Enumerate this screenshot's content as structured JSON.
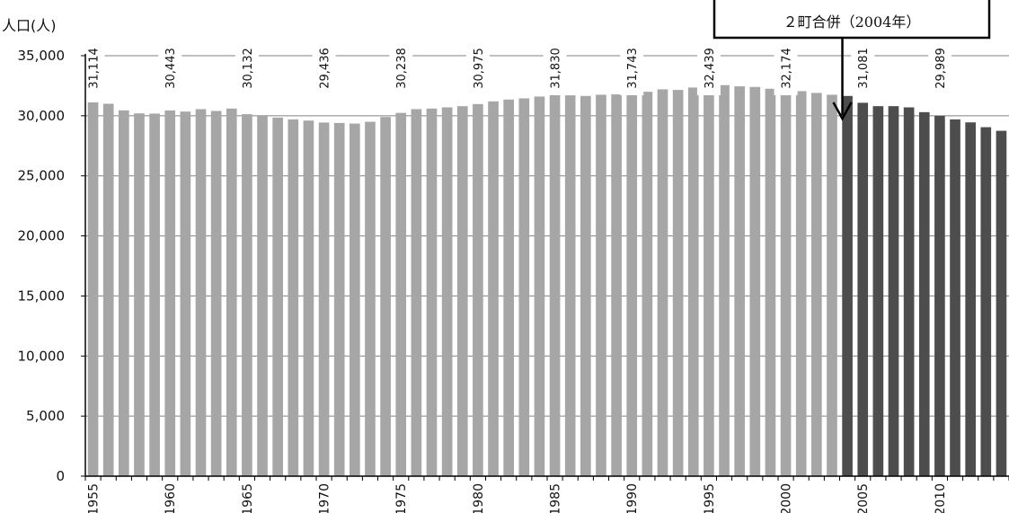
{
  "chart_data": {
    "type": "bar",
    "ylabel": "人口(人)",
    "ylim": [
      0,
      35000
    ],
    "yticks": [
      "0",
      "5,000",
      "10,000",
      "15,000",
      "20,000",
      "25,000",
      "30,000",
      "35,000"
    ],
    "x": [
      1955,
      1956,
      1957,
      1958,
      1959,
      1960,
      1961,
      1962,
      1963,
      1964,
      1965,
      1966,
      1967,
      1968,
      1969,
      1970,
      1971,
      1972,
      1973,
      1974,
      1975,
      1976,
      1977,
      1978,
      1979,
      1980,
      1981,
      1982,
      1983,
      1984,
      1985,
      1986,
      1987,
      1988,
      1989,
      1990,
      1991,
      1992,
      1993,
      1994,
      1995,
      1996,
      1997,
      1998,
      1999,
      2000,
      2001,
      2002,
      2003,
      2004,
      2005,
      2006,
      2007,
      2008,
      2009,
      2010,
      2011,
      2012,
      2013,
      2014
    ],
    "xtick_labels": [
      "1955",
      "1960",
      "1965",
      "1970",
      "1975",
      "1980",
      "1985",
      "1990",
      "1995",
      "2000",
      "2005",
      "2010"
    ],
    "values": [
      31114,
      31000,
      30450,
      30200,
      30180,
      30443,
      30350,
      30550,
      30400,
      30600,
      30132,
      30050,
      29850,
      29700,
      29600,
      29436,
      29400,
      29350,
      29500,
      29900,
      30238,
      30550,
      30600,
      30700,
      30800,
      30975,
      31200,
      31350,
      31450,
      31600,
      31830,
      31700,
      31650,
      31750,
      31780,
      31743,
      32000,
      32200,
      32150,
      32350,
      32439,
      32550,
      32450,
      32400,
      32250,
      32174,
      32050,
      31900,
      31750,
      31650,
      31081,
      30800,
      30800,
      30700,
      30300,
      29989,
      29700,
      29450,
      29050,
      28750
    ],
    "data_labels": [
      {
        "x": 1955,
        "text": "31,114"
      },
      {
        "x": 1960,
        "text": "30,443"
      },
      {
        "x": 1965,
        "text": "30,132"
      },
      {
        "x": 1970,
        "text": "29,436"
      },
      {
        "x": 1975,
        "text": "30,238"
      },
      {
        "x": 1980,
        "text": "30,975"
      },
      {
        "x": 1985,
        "text": "31,830"
      },
      {
        "x": 1990,
        "text": "31,743"
      },
      {
        "x": 1995,
        "text": "32,439"
      },
      {
        "x": 2000,
        "text": "32,174"
      },
      {
        "x": 2005,
        "text": "31,081"
      },
      {
        "x": 2010,
        "text": "29,989"
      }
    ],
    "merge_year": 2004,
    "colors": {
      "before": "#a6a6a6",
      "after": "#4d4d4d",
      "grid": "#808080",
      "axis": "#000000"
    },
    "annotation": {
      "text": "２町合併（2004年）",
      "x": 2004
    },
    "grid": true
  }
}
